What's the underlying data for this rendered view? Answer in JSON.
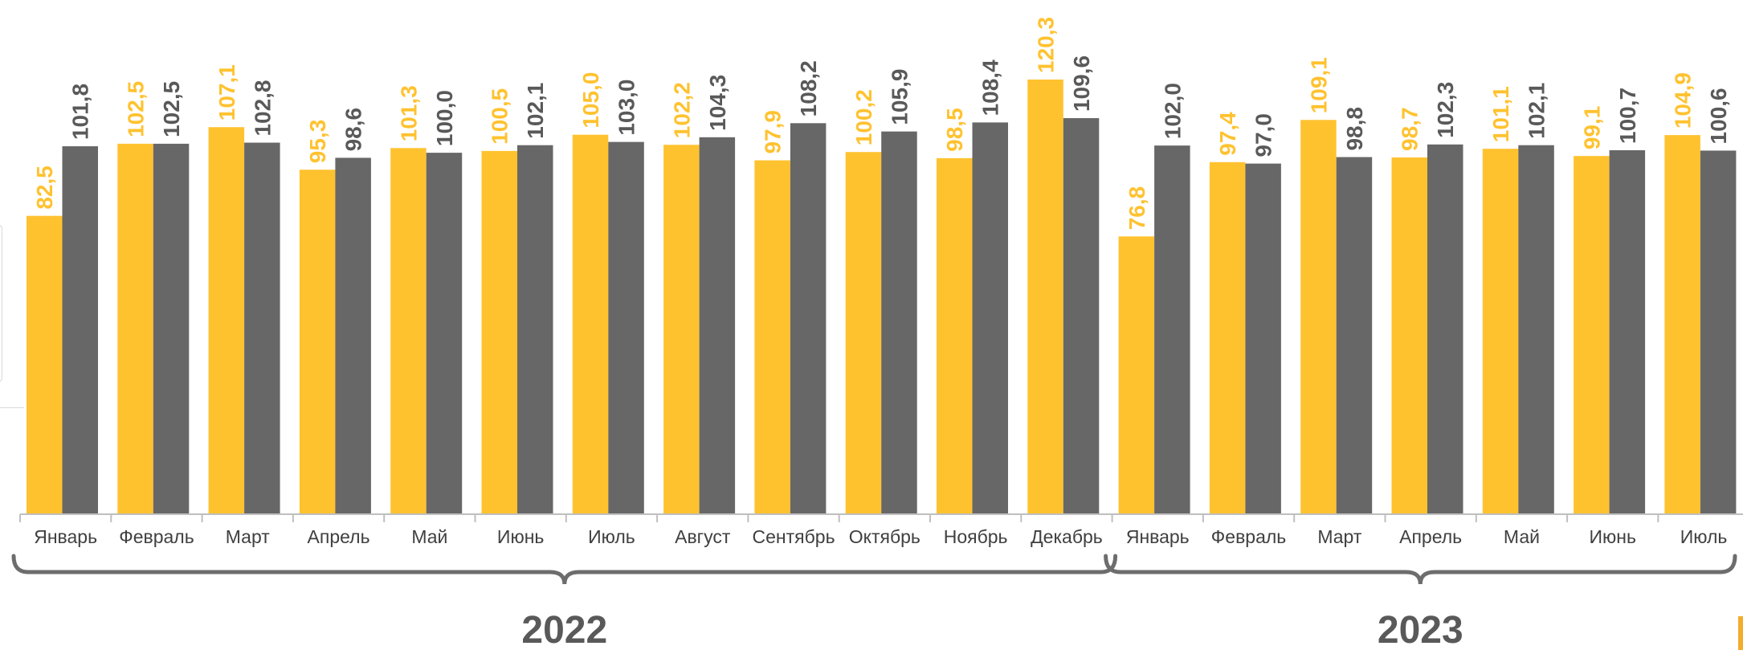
{
  "chart_data": {
    "type": "bar",
    "categories": [
      "Январь",
      "Февраль",
      "Март",
      "Апрель",
      "Май",
      "Июнь",
      "Июль",
      "Август",
      "Сентябрь",
      "Октябрь",
      "Ноябрь",
      "Декабрь",
      "Январь",
      "Февраль",
      "Март",
      "Апрель",
      "Май",
      "Июнь",
      "Июль"
    ],
    "groups": [
      {
        "label": "2022",
        "start": 0,
        "end": 11
      },
      {
        "label": "2023",
        "start": 12,
        "end": 18
      }
    ],
    "series": [
      {
        "color": "#ffc22f",
        "labels": [
          "82,5",
          "102,5",
          "107,1",
          "95,3",
          "101,3",
          "100,5",
          "105,0",
          "102,2",
          "97,9",
          "100,2",
          "98,5",
          "120,3",
          "76,8",
          "97,4",
          "109,1",
          "98,7",
          "101,1",
          "99,1",
          "104,9"
        ],
        "values": [
          82.5,
          102.5,
          107.1,
          95.3,
          101.3,
          100.5,
          105.0,
          102.2,
          97.9,
          100.2,
          98.5,
          120.3,
          76.8,
          97.4,
          109.1,
          98.7,
          101.1,
          99.1,
          104.9
        ]
      },
      {
        "color": "#676767",
        "labels": [
          "101,8",
          "102,5",
          "102,8",
          "98,6",
          "100,0",
          "102,1",
          "103,0",
          "104,3",
          "108,2",
          "105,9",
          "108,4",
          "109,6",
          "102,0",
          "97,0",
          "98,8",
          "102,3",
          "102,1",
          "100,7",
          "100,6"
        ],
        "values": [
          101.8,
          102.5,
          102.8,
          98.6,
          100.0,
          102.1,
          103.0,
          104.3,
          108.2,
          105.9,
          108.4,
          109.6,
          102.0,
          97.0,
          98.8,
          102.3,
          102.1,
          100.7,
          100.6
        ]
      }
    ],
    "ylim": [
      0,
      120.3
    ],
    "label_colors": {
      "series1": "#ffc22f",
      "series2": "#595959"
    },
    "axis_color": "#bfbfbf",
    "bracket_color": "#6d6d6d"
  }
}
